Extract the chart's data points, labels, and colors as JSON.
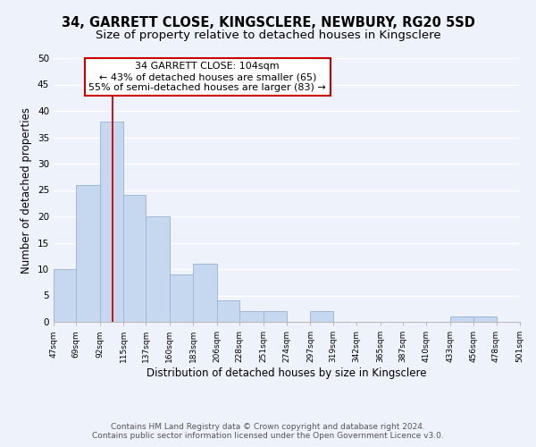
{
  "title1": "34, GARRETT CLOSE, KINGSCLERE, NEWBURY, RG20 5SD",
  "title2": "Size of property relative to detached houses in Kingsclere",
  "xlabel": "Distribution of detached houses by size in Kingsclere",
  "ylabel": "Number of detached properties",
  "bar_edges": [
    47,
    69,
    92,
    115,
    137,
    160,
    183,
    206,
    228,
    251,
    274,
    297,
    319,
    342,
    365,
    387,
    410,
    433,
    456,
    478,
    501
  ],
  "bar_heights": [
    10,
    26,
    38,
    24,
    20,
    9,
    11,
    4,
    2,
    2,
    0,
    2,
    0,
    0,
    0,
    0,
    0,
    1,
    1,
    0
  ],
  "bar_color": "#c5d8f0",
  "bar_edge_color": "#a0b8d8",
  "vline_x": 104,
  "vline_color": "#cc0000",
  "annotation_line1": "34 GARRETT CLOSE: 104sqm",
  "annotation_line2": "← 43% of detached houses are smaller (65)",
  "annotation_line3": "55% of semi-detached houses are larger (83) →",
  "annotation_box_color": "white",
  "annotation_box_edge": "#cc0000",
  "ylim": [
    0,
    50
  ],
  "yticks": [
    0,
    5,
    10,
    15,
    20,
    25,
    30,
    35,
    40,
    45,
    50
  ],
  "tick_labels": [
    "47sqm",
    "69sqm",
    "92sqm",
    "115sqm",
    "137sqm",
    "160sqm",
    "183sqm",
    "206sqm",
    "228sqm",
    "251sqm",
    "274sqm",
    "297sqm",
    "319sqm",
    "342sqm",
    "365sqm",
    "387sqm",
    "410sqm",
    "433sqm",
    "456sqm",
    "478sqm",
    "501sqm"
  ],
  "footer_line1": "Contains HM Land Registry data © Crown copyright and database right 2024.",
  "footer_line2": "Contains public sector information licensed under the Open Government Licence v3.0.",
  "background_color": "#eef2fa",
  "grid_color": "#ffffff",
  "title1_fontsize": 10.5,
  "title2_fontsize": 9.5,
  "annotation_fontsize": 8,
  "footer_fontsize": 6.5,
  "xlabel_fontsize": 8.5,
  "ylabel_fontsize": 8.5
}
